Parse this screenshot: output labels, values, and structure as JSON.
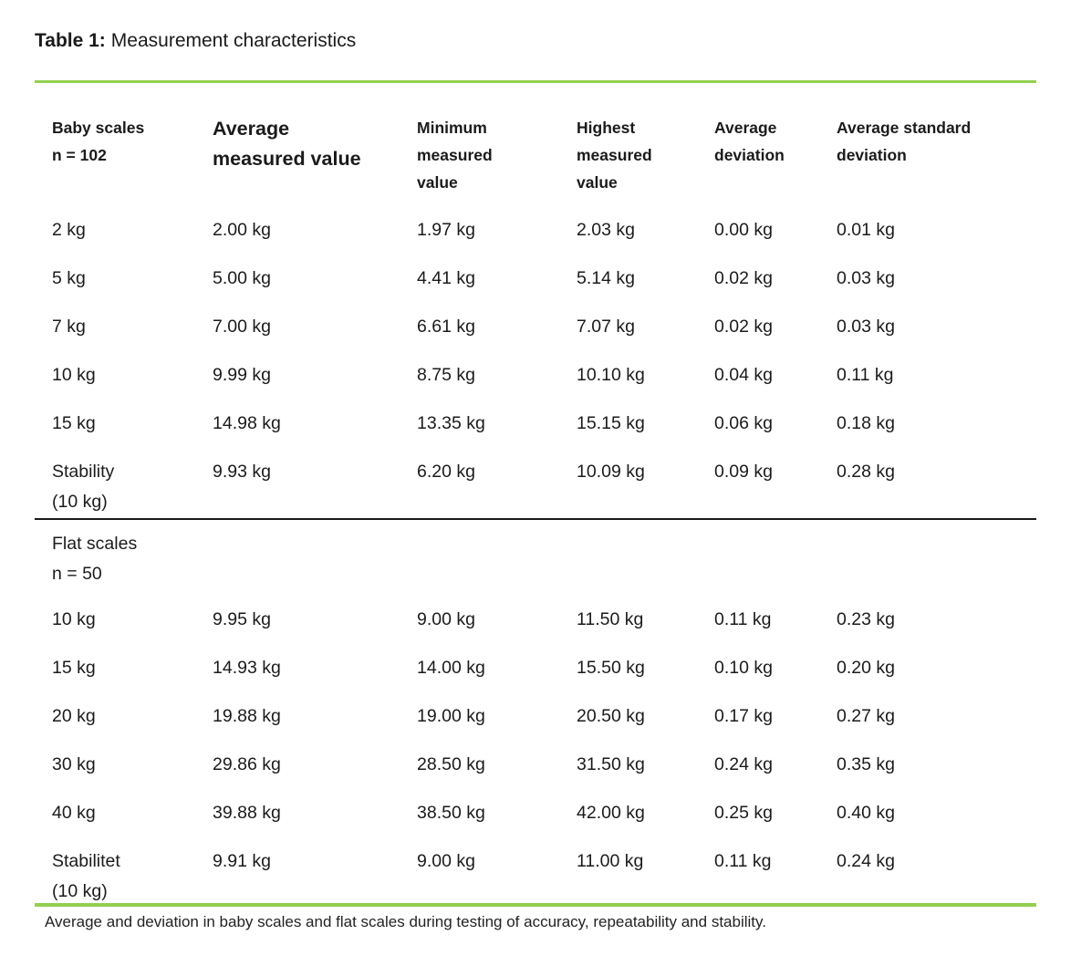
{
  "title": {
    "label": "Table 1:",
    "text": "Measurement characteristics"
  },
  "colors": {
    "accent_green": "#92D050",
    "divider_black": "#1a1a1a",
    "text": "#1b1b1b"
  },
  "table": {
    "headers": [
      "Baby scales\nn = 102",
      "Average\nmeasured value",
      "Minimum\nmeasured\nvalue",
      "Highest\nmeasured\nvalue",
      "Average\ndeviation",
      "Average standard\ndeviation"
    ],
    "sections": [
      {
        "name": "Baby scales",
        "n": "n = 102",
        "rows": [
          [
            "2 kg",
            "2.00 kg",
            "1.97 kg",
            "2.03 kg",
            "0.00 kg",
            "0.01 kg"
          ],
          [
            "5 kg",
            "5.00 kg",
            "4.41 kg",
            "5.14 kg",
            "0.02 kg",
            "0.03 kg"
          ],
          [
            "7 kg",
            "7.00 kg",
            "6.61 kg",
            "7.07 kg",
            "0.02 kg",
            "0.03 kg"
          ],
          [
            "10 kg",
            "9.99 kg",
            "8.75 kg",
            "10.10 kg",
            "0.04 kg",
            "0.11 kg"
          ],
          [
            "15 kg",
            "14.98 kg",
            "13.35 kg",
            "15.15 kg",
            "0.06 kg",
            "0.18 kg"
          ],
          [
            "Stability\n(10 kg)",
            "9.93 kg",
            "6.20 kg",
            "10.09 kg",
            "0.09 kg",
            "0.28 kg"
          ]
        ]
      },
      {
        "name": "Flat scales",
        "n": "n = 50",
        "label": "Flat scales\nn = 50",
        "rows": [
          [
            "10 kg",
            "9.95 kg",
            "9.00 kg",
            "11.50 kg",
            "0.11 kg",
            "0.23 kg"
          ],
          [
            "15 kg",
            "14.93 kg",
            "14.00 kg",
            "15.50 kg",
            "0.10 kg",
            "0.20 kg"
          ],
          [
            "20 kg",
            "19.88 kg",
            "19.00 kg",
            "20.50 kg",
            "0.17 kg",
            "0.27 kg"
          ],
          [
            "30 kg",
            "29.86 kg",
            "28.50 kg",
            "31.50 kg",
            "0.24 kg",
            "0.35 kg"
          ],
          [
            "40 kg",
            "39.88 kg",
            "38.50 kg",
            "42.00 kg",
            "0.25 kg",
            "0.40 kg"
          ],
          [
            "Stabilitet\n(10 kg)",
            "9.91 kg",
            "9.00 kg",
            "11.00 kg",
            "0.11 kg",
            "0.24 kg"
          ]
        ]
      }
    ]
  },
  "caption": "Average and deviation in baby scales and flat scales during testing of accuracy, repeatability and stability."
}
